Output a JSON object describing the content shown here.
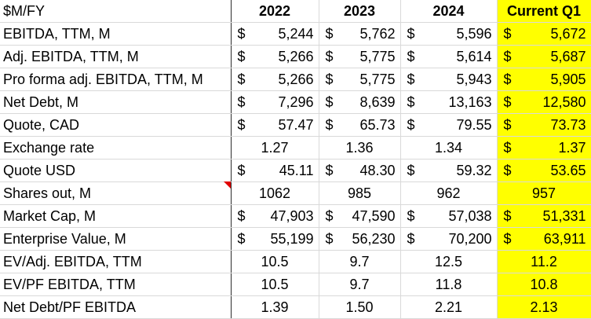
{
  "header": {
    "title": "$M/FY",
    "columns": [
      "2022",
      "2023",
      "2024",
      "Current Q1"
    ]
  },
  "rows": [
    {
      "label": "EBITDA, TTM, M",
      "cells": [
        {
          "prefix": "$",
          "value": "5,244"
        },
        {
          "prefix": "$",
          "value": "5,762"
        },
        {
          "prefix": "$",
          "value": "5,596"
        },
        {
          "prefix": "$",
          "value": "5,672"
        }
      ]
    },
    {
      "label": "Adj. EBITDA, TTM, M",
      "cells": [
        {
          "prefix": "$",
          "value": "5,266"
        },
        {
          "prefix": "$",
          "value": "5,775"
        },
        {
          "prefix": "$",
          "value": "5,614"
        },
        {
          "prefix": "$",
          "value": "5,687"
        }
      ]
    },
    {
      "label": "Pro forma adj. EBITDA, TTM, M",
      "cells": [
        {
          "prefix": "$",
          "value": "5,266"
        },
        {
          "prefix": "$",
          "value": "5,775"
        },
        {
          "prefix": "$",
          "value": "5,943"
        },
        {
          "prefix": "$",
          "value": "5,905"
        }
      ]
    },
    {
      "label": "Net Debt, M",
      "cells": [
        {
          "prefix": "$",
          "value": "7,296"
        },
        {
          "prefix": "$",
          "value": "8,639"
        },
        {
          "prefix": "$",
          "value": "13,163"
        },
        {
          "prefix": "$",
          "value": "12,580"
        }
      ]
    },
    {
      "label": "Quote, CAD",
      "cells": [
        {
          "prefix": "$",
          "value": "57.47"
        },
        {
          "prefix": "$",
          "value": "65.73"
        },
        {
          "prefix": "$",
          "value": "79.55"
        },
        {
          "prefix": "$",
          "value": "73.73"
        }
      ]
    },
    {
      "label": "Exchange rate",
      "cells": [
        {
          "prefix": "",
          "value": "1.27"
        },
        {
          "prefix": "",
          "value": "1.36"
        },
        {
          "prefix": "",
          "value": "1.34"
        },
        {
          "prefix": "$",
          "value": "1.37"
        }
      ]
    },
    {
      "label": "Quote USD",
      "cells": [
        {
          "prefix": "$",
          "value": "45.11"
        },
        {
          "prefix": "$",
          "value": "48.30"
        },
        {
          "prefix": "$",
          "value": "59.32"
        },
        {
          "prefix": "$",
          "value": "53.65"
        }
      ]
    },
    {
      "label": "Shares out, M",
      "cells": [
        {
          "prefix": "",
          "value": "1062"
        },
        {
          "prefix": "",
          "value": "985"
        },
        {
          "prefix": "",
          "value": "962"
        },
        {
          "prefix": "",
          "value": "957"
        }
      ]
    },
    {
      "label": "Market Cap, M",
      "cells": [
        {
          "prefix": "$",
          "value": "47,903"
        },
        {
          "prefix": "$",
          "value": "47,590"
        },
        {
          "prefix": "$",
          "value": "57,038"
        },
        {
          "prefix": "$",
          "value": "51,331"
        }
      ]
    },
    {
      "label": "Enterprise Value, M",
      "cells": [
        {
          "prefix": "$",
          "value": "55,199"
        },
        {
          "prefix": "$",
          "value": "56,230"
        },
        {
          "prefix": "$",
          "value": "70,200"
        },
        {
          "prefix": "$",
          "value": "63,911"
        }
      ]
    },
    {
      "label": "EV/Adj. EBITDA, TTM",
      "cells": [
        {
          "prefix": "",
          "value": "10.5"
        },
        {
          "prefix": "",
          "value": "9.7"
        },
        {
          "prefix": "",
          "value": "12.5"
        },
        {
          "prefix": "",
          "value": "11.2"
        }
      ]
    },
    {
      "label": "EV/PF EBITDA, TTM",
      "cells": [
        {
          "prefix": "",
          "value": "10.5"
        },
        {
          "prefix": "",
          "value": "9.7"
        },
        {
          "prefix": "",
          "value": "11.8"
        },
        {
          "prefix": "",
          "value": "10.8"
        }
      ]
    },
    {
      "label": "Net Debt/PF EBITDA",
      "cells": [
        {
          "prefix": "",
          "value": "1.39"
        },
        {
          "prefix": "",
          "value": "1.50"
        },
        {
          "prefix": "",
          "value": "2.21"
        },
        {
          "prefix": "",
          "value": "2.13"
        }
      ]
    }
  ],
  "highlight_color": "#ffff00",
  "comment_marker_color": "#e00000"
}
